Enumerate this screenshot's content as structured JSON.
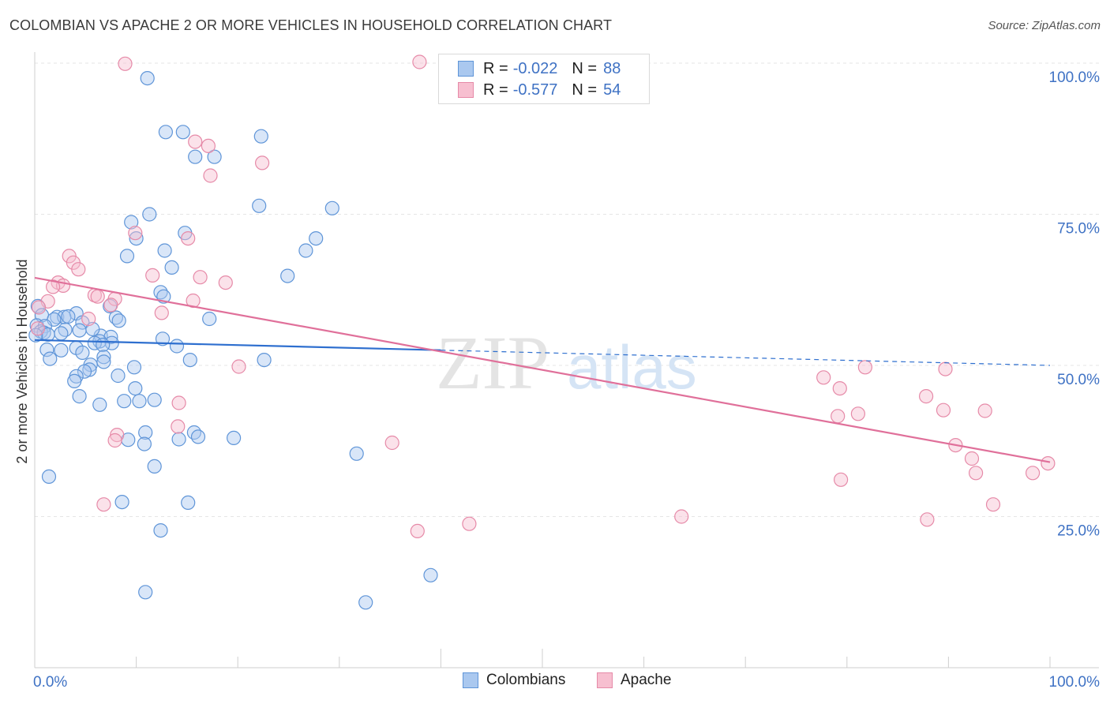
{
  "title": "COLOMBIAN VS APACHE 2 OR MORE VEHICLES IN HOUSEHOLD CORRELATION CHART",
  "source": "Source: ZipAtlas.com",
  "watermark": {
    "zip": "ZIP",
    "atlas": "atlas"
  },
  "legend": {
    "r_label": "R =",
    "n_label": "N =",
    "rows": [
      {
        "series": "Colombians",
        "r": "-0.022",
        "n": "88",
        "fill": "#aac8ef",
        "stroke": "#5f95d8"
      },
      {
        "series": "Apache",
        "r": "-0.577",
        "n": "54",
        "fill": "#f7bfd0",
        "stroke": "#e68aa8"
      }
    ]
  },
  "bottom_legend": [
    {
      "label": "Colombians",
      "fill": "#aac8ef",
      "stroke": "#5f95d8"
    },
    {
      "label": "Apache",
      "fill": "#f7bfd0",
      "stroke": "#e68aa8"
    }
  ],
  "chart_data": {
    "type": "scatter",
    "title": "COLOMBIAN VS APACHE 2 OR MORE VEHICLES IN HOUSEHOLD CORRELATION CHART",
    "xlabel": "",
    "ylabel": "2 or more Vehicles in Household",
    "xlim": [
      0,
      100
    ],
    "ylim": [
      0,
      102
    ],
    "x_tick_labels": [
      "0.0%",
      "100.0%"
    ],
    "y_ticks": [
      25,
      50,
      75,
      100
    ],
    "y_tick_labels": [
      "25.0%",
      "50.0%",
      "75.0%",
      "100.0%"
    ],
    "grid": true,
    "colors": {
      "colombians": "#5f95d8",
      "apache": "#e68aa8",
      "colombians_line": "#2e6fcf",
      "apache_line": "#e0709a",
      "tick": "#3f72c4"
    },
    "series": [
      {
        "name": "Colombians",
        "color": "#5f95d8",
        "trend": {
          "x": [
            0,
            100
          ],
          "y": [
            54.2,
            50.0
          ],
          "solid_until_x": 40
        },
        "points": [
          [
            11.1,
            97.5
          ],
          [
            12.9,
            88.6
          ],
          [
            14.6,
            88.6
          ],
          [
            15.8,
            84.5
          ],
          [
            17.7,
            84.5
          ],
          [
            22.3,
            87.9
          ],
          [
            22.1,
            76.4
          ],
          [
            29.3,
            76.0
          ],
          [
            11.3,
            75.0
          ],
          [
            9.5,
            73.7
          ],
          [
            14.8,
            71.9
          ],
          [
            10.0,
            71.0
          ],
          [
            27.7,
            71.0
          ],
          [
            12.8,
            69.0
          ],
          [
            26.7,
            69.0
          ],
          [
            9.1,
            68.1
          ],
          [
            13.5,
            66.2
          ],
          [
            24.9,
            64.8
          ],
          [
            12.4,
            62.1
          ],
          [
            12.7,
            61.4
          ],
          [
            7.4,
            59.8
          ],
          [
            0.3,
            59.8
          ],
          [
            4.1,
            58.6
          ],
          [
            0.7,
            58.3
          ],
          [
            2.2,
            58.0
          ],
          [
            2.9,
            58.0
          ],
          [
            8.0,
            57.9
          ],
          [
            17.2,
            57.7
          ],
          [
            1.9,
            57.6
          ],
          [
            8.3,
            57.4
          ],
          [
            4.7,
            57.1
          ],
          [
            0.2,
            56.6
          ],
          [
            1.0,
            56.5
          ],
          [
            3.0,
            55.9
          ],
          [
            4.4,
            55.8
          ],
          [
            0.6,
            55.6
          ],
          [
            0.9,
            55.4
          ],
          [
            2.6,
            55.3
          ],
          [
            1.3,
            55.1
          ],
          [
            6.5,
            54.9
          ],
          [
            7.5,
            54.7
          ],
          [
            12.6,
            54.4
          ],
          [
            6.4,
            54.0
          ],
          [
            5.9,
            53.7
          ],
          [
            7.6,
            53.7
          ],
          [
            6.7,
            53.4
          ],
          [
            14.0,
            53.2
          ],
          [
            4.1,
            52.9
          ],
          [
            1.2,
            52.6
          ],
          [
            2.6,
            52.5
          ],
          [
            4.7,
            52.1
          ],
          [
            6.8,
            51.4
          ],
          [
            1.5,
            51.1
          ],
          [
            15.3,
            50.9
          ],
          [
            6.8,
            50.6
          ],
          [
            22.6,
            50.9
          ],
          [
            5.5,
            50.1
          ],
          [
            9.8,
            49.7
          ],
          [
            5.4,
            49.3
          ],
          [
            4.9,
            49.0
          ],
          [
            8.2,
            48.3
          ],
          [
            4.1,
            48.2
          ],
          [
            3.9,
            47.4
          ],
          [
            9.9,
            46.2
          ],
          [
            4.4,
            44.9
          ],
          [
            8.8,
            44.1
          ],
          [
            10.3,
            44.1
          ],
          [
            11.8,
            44.3
          ],
          [
            6.4,
            43.5
          ],
          [
            10.9,
            38.9
          ],
          [
            15.7,
            38.9
          ],
          [
            16.1,
            38.2
          ],
          [
            19.6,
            38.0
          ],
          [
            14.2,
            37.8
          ],
          [
            9.2,
            37.7
          ],
          [
            10.8,
            37.0
          ],
          [
            31.7,
            35.4
          ],
          [
            11.8,
            33.3
          ],
          [
            1.4,
            31.6
          ],
          [
            8.6,
            27.4
          ],
          [
            15.1,
            27.3
          ],
          [
            12.4,
            22.7
          ],
          [
            39.0,
            15.3
          ],
          [
            10.9,
            12.5
          ],
          [
            32.6,
            10.8
          ],
          [
            0.1,
            55.0
          ],
          [
            5.7,
            56.0
          ],
          [
            3.3,
            58.1
          ]
        ]
      },
      {
        "name": "Apache",
        "color": "#e68aa8",
        "trend": {
          "x": [
            0,
            100
          ],
          "y": [
            64.5,
            34.0
          ]
        },
        "points": [
          [
            8.9,
            99.9
          ],
          [
            37.9,
            100.2
          ],
          [
            15.8,
            87.0
          ],
          [
            17.1,
            86.3
          ],
          [
            22.4,
            83.5
          ],
          [
            17.3,
            81.4
          ],
          [
            9.9,
            71.9
          ],
          [
            15.1,
            71.0
          ],
          [
            3.4,
            68.1
          ],
          [
            3.8,
            67.0
          ],
          [
            4.3,
            65.9
          ],
          [
            11.6,
            64.9
          ],
          [
            16.3,
            64.6
          ],
          [
            18.8,
            63.7
          ],
          [
            2.3,
            63.7
          ],
          [
            2.8,
            63.2
          ],
          [
            1.8,
            63.0
          ],
          [
            5.9,
            61.6
          ],
          [
            6.2,
            61.4
          ],
          [
            7.9,
            61.0
          ],
          [
            15.6,
            60.7
          ],
          [
            1.3,
            60.6
          ],
          [
            7.5,
            60.0
          ],
          [
            0.4,
            59.6
          ],
          [
            12.5,
            58.7
          ],
          [
            5.3,
            57.7
          ],
          [
            0.3,
            56.1
          ],
          [
            20.1,
            49.8
          ],
          [
            35.2,
            37.2
          ],
          [
            14.2,
            43.8
          ],
          [
            14.1,
            39.9
          ],
          [
            8.1,
            38.5
          ],
          [
            7.9,
            37.6
          ],
          [
            6.8,
            27.0
          ],
          [
            37.7,
            22.6
          ],
          [
            42.8,
            23.8
          ],
          [
            63.7,
            25.0
          ],
          [
            77.7,
            48.0
          ],
          [
            79.3,
            46.2
          ],
          [
            81.8,
            49.7
          ],
          [
            89.7,
            49.4
          ],
          [
            87.8,
            44.9
          ],
          [
            89.5,
            42.6
          ],
          [
            93.6,
            42.5
          ],
          [
            79.1,
            41.6
          ],
          [
            81.1,
            42.0
          ],
          [
            90.7,
            36.8
          ],
          [
            92.3,
            34.6
          ],
          [
            92.7,
            32.2
          ],
          [
            98.3,
            32.2
          ],
          [
            99.8,
            33.8
          ],
          [
            79.4,
            31.1
          ],
          [
            94.4,
            27.0
          ],
          [
            87.9,
            24.5
          ]
        ]
      }
    ]
  }
}
